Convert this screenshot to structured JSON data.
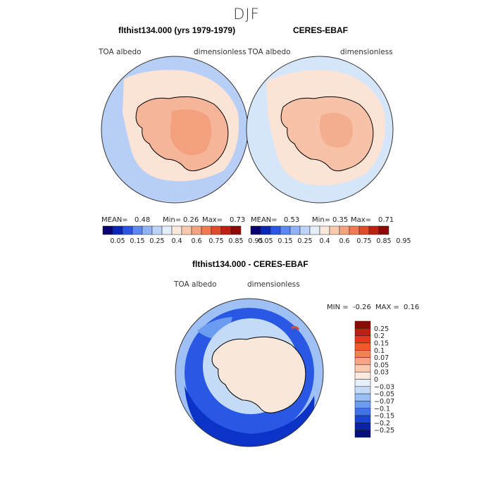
{
  "season_title": "DJF",
  "panels": [
    {
      "title": "flthist134.000 (yrs 1979-1979)",
      "variable": "TOA albedo",
      "units": "dimensionless",
      "mean_label": "MEAN=",
      "mean": "0.48",
      "min_label": "Min=",
      "min": "0.26",
      "max_label": "Max=",
      "max": "0.73"
    },
    {
      "title": "CERES-EBAF",
      "variable": "TOA albedo",
      "units": "dimensionless",
      "mean_label": "MEAN=",
      "mean": "0.53",
      "min_label": "Min=",
      "min": "0.35",
      "max_label": "Max=",
      "max": "0.71"
    }
  ],
  "abs_colorbar": {
    "labels": [
      "0.05",
      "0.15",
      "0.25",
      "0.4",
      "0.6",
      "0.75",
      "0.85",
      "0.95"
    ],
    "colors": [
      "#08006e",
      "#0a26b5",
      "#2a55e8",
      "#5b88f2",
      "#8fb3f6",
      "#bcd4f8",
      "#e3eefb",
      "#fbe8dc",
      "#f9c9ad",
      "#f5a27f",
      "#f07a52",
      "#e34a29",
      "#c11f12",
      "#8b0a05"
    ]
  },
  "diff_panel": {
    "title": "flthist134.000 - CERES-EBAF",
    "variable": "TOA albedo",
    "units": "dimensionless",
    "min_label": "MIN =",
    "min": "-0.26",
    "max_label": "MAX =",
    "max": "0.16",
    "colorbar_labels": [
      "0.25",
      "0.2",
      "0.15",
      "0.1",
      "0.07",
      "0.05",
      "0.03",
      "0",
      "−0.03",
      "−0.05",
      "−0.07",
      "−0.1",
      "−0.15",
      "−0.2",
      "−0.25"
    ],
    "colorbar_colors": [
      "#8b0a05",
      "#c11f12",
      "#e0391c",
      "#f25a2b",
      "#f58057",
      "#f8a587",
      "#fbc9b0",
      "#fce9df",
      "#e6f0fb",
      "#c4dbf8",
      "#99bff5",
      "#6b9cf0",
      "#3f73e6",
      "#1a45d2",
      "#0a22a8",
      "#050f78"
    ]
  },
  "colors": {
    "ocean_ctrl": "#b7cff7",
    "ocean_ctrl_light": "#cfe0f9",
    "ocean_obs": "#d6e6fa",
    "seaice_band": "#fbe4d6",
    "continent_ctrl": "#f6b598",
    "continent_ctrl_core": "#f2a07e",
    "continent_obs": "#f7c2a8",
    "continent_obs_core": "#f3ae8e",
    "diff_ocean": "#9fc0f4",
    "diff_ring": "#2858e4",
    "diff_ring_dark": "#0c33c8",
    "diff_land": "#fae7dc",
    "coastline": "#000000"
  }
}
